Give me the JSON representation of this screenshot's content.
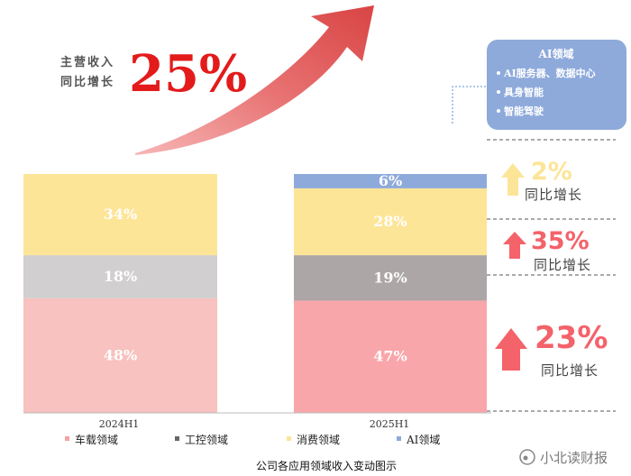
{
  "chart_data": {
    "type": "bar",
    "stacked": true,
    "caption": "公司各应用领域收入变动图示",
    "categories": [
      "2024H1",
      "2025H1"
    ],
    "series": [
      {
        "name": "车载领域",
        "color": "#f7c2bf",
        "color_2025": "#f9a6aa",
        "values": [
          48,
          47
        ]
      },
      {
        "name": "工控领域",
        "color": "#d1cfcf",
        "color_2025": "#aca6a6",
        "values": [
          18,
          19
        ]
      },
      {
        "name": "消费领域",
        "color": "#fde598",
        "color_2025": "#fde598",
        "values": [
          34,
          28
        ]
      },
      {
        "name": "AI领域",
        "color": "#8eaadb",
        "color_2025": "#8eaadb",
        "values": [
          0,
          6
        ]
      }
    ],
    "legend": {
      "position": "bottom"
    }
  },
  "headline": {
    "label_line1": "主营收入",
    "label_line2": "同比增长",
    "value": "25%",
    "color": "#e02020"
  },
  "ai_box": {
    "title": "AI领域",
    "items": [
      "AI服务器、数据中心",
      "具身智能",
      "智能驾驶"
    ],
    "color": "#8eaadb"
  },
  "growth": [
    {
      "segment": "消费领域",
      "value": "2%",
      "label": "同比增长",
      "color": "#fde598"
    },
    {
      "segment": "工控领域",
      "value": "35%",
      "label": "同比增长",
      "color": "#f4626a"
    },
    {
      "segment": "车载领域",
      "value": "23%",
      "label": "同比增长",
      "color": "#f4626a"
    }
  ],
  "watermark": "小北读财报"
}
